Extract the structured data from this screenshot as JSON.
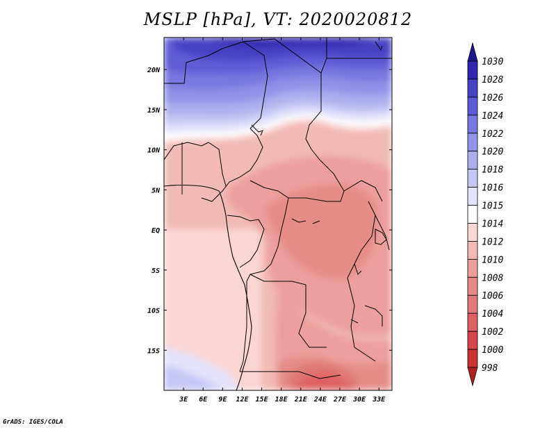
{
  "chart_data": {
    "type": "heatmap",
    "title": "MSLP [hPa], VT: 2020020812",
    "variable": "MSLP",
    "units": "hPa",
    "valid_time": "2020020812",
    "lon_range": [
      0,
      35
    ],
    "lat_range": [
      -20,
      24
    ],
    "lon_ticks": [
      3,
      6,
      9,
      12,
      15,
      18,
      21,
      24,
      27,
      30,
      33
    ],
    "lon_tick_labels": [
      "3E",
      "6E",
      "9E",
      "12E",
      "15E",
      "18E",
      "21E",
      "24E",
      "27E",
      "30E",
      "33E"
    ],
    "lat_ticks": [
      20,
      15,
      10,
      5,
      0,
      -5,
      -10,
      -15
    ],
    "lat_tick_labels": [
      "20N",
      "15N",
      "10N",
      "5N",
      "EQ",
      "5S",
      "10S",
      "15S"
    ],
    "colorbar": {
      "levels": [
        998,
        1000,
        1002,
        1004,
        1006,
        1008,
        1010,
        1012,
        1014,
        1015,
        1016,
        1018,
        1020,
        1022,
        1024,
        1026,
        1028,
        1030
      ],
      "labels": [
        "998",
        "1000",
        "1002",
        "1004",
        "1006",
        "1008",
        "1010",
        "1012",
        "1014",
        "1015",
        "1016",
        "1018",
        "1020",
        "1022",
        "1024",
        "1026",
        "1028",
        "1030"
      ],
      "colors": [
        "#b0201e",
        "#c83330",
        "#d5484a",
        "#dd6262",
        "#e07a78",
        "#e58c89",
        "#ec9f9c",
        "#f3b9b6",
        "#f9d6d4",
        "#ffffff",
        "#e3e3fa",
        "#c6c7f4",
        "#acadef",
        "#9192e8",
        "#7777de",
        "#5e5cd4",
        "#4742c2",
        "#3026ae",
        "#1e168f"
      ]
    }
  },
  "credit": "GrADS: IGES/COLA"
}
